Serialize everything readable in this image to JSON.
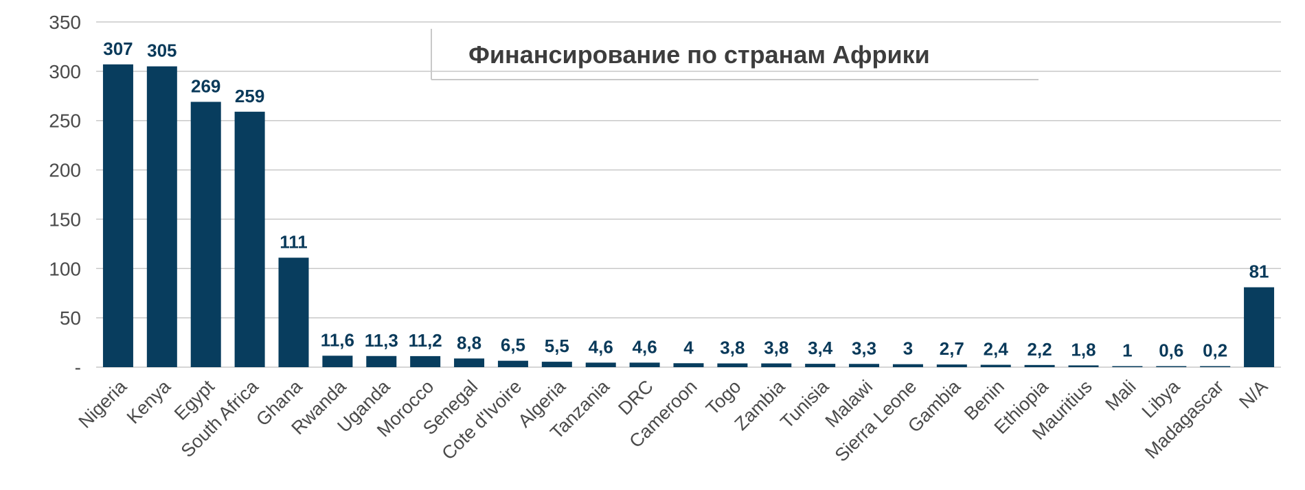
{
  "chart_data": {
    "type": "bar",
    "title": "Финансирование по странам Африки",
    "categories": [
      "Nigeria",
      "Kenya",
      "Egypt",
      "South Africa",
      "Ghana",
      "Rwanda",
      "Uganda",
      "Morocco",
      "Senegal",
      "Cote d'Ivoire",
      "Algeria",
      "Tanzania",
      "DRC",
      "Cameroon",
      "Togo",
      "Zambia",
      "Tunisia",
      "Malawi",
      "Sierra Leone",
      "Gambia",
      "Benin",
      "Ethiopia",
      "Mauritius",
      "Mali",
      "Libya",
      "Madagascar",
      "N/A"
    ],
    "values": [
      307,
      305,
      269,
      259,
      111,
      11.6,
      11.3,
      11.2,
      8.8,
      6.5,
      5.5,
      4.6,
      4.6,
      4,
      3.8,
      3.8,
      3.4,
      3.3,
      3,
      2.7,
      2.4,
      2.2,
      1.8,
      1,
      0.6,
      0.2,
      81
    ],
    "data_labels": [
      "307",
      "305",
      "269",
      "259",
      "111",
      "11,6",
      "11,3",
      "11,2",
      "8,8",
      "6,5",
      "5,5",
      "4,6",
      "4,6",
      "4",
      "3,8",
      "3,8",
      "3,4",
      "3,3",
      "3",
      "2,7",
      "2,4",
      "2,2",
      "1,8",
      "1",
      "0,6",
      "0,2",
      "81"
    ],
    "yticks": [
      "-",
      "50",
      "100",
      "150",
      "200",
      "250",
      "300",
      "350"
    ],
    "ylim": [
      0,
      350
    ],
    "grid": true,
    "bar_color": "#083d5e",
    "label_color": "#0a3a5a"
  }
}
